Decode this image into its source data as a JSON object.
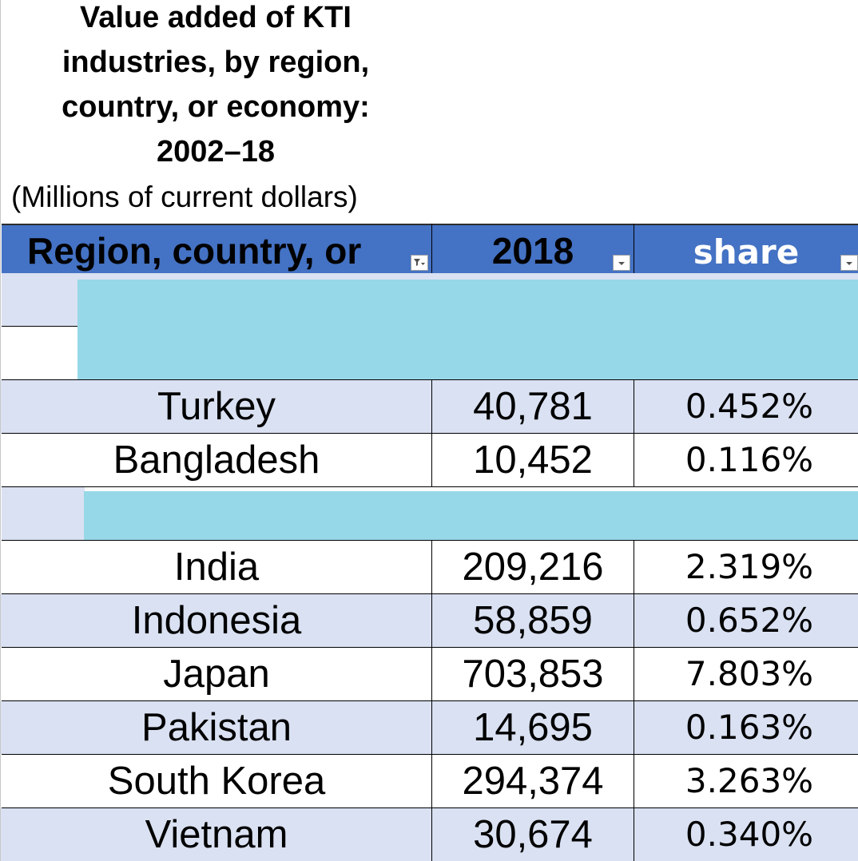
{
  "title": "Value added of KTI industries, by region, country, or economy: 2002–18",
  "title_lines": [
    "Value added of KTI",
    "industries, by region,",
    "country, or economy:",
    "2002–18"
  ],
  "subtitle": "(Millions of current dollars)",
  "table": {
    "headers": [
      {
        "label": "Region, country, or",
        "filter": "filtered"
      },
      {
        "label": "2018",
        "filter": "dropdown"
      },
      {
        "label": "share",
        "filter": "dropdown"
      }
    ],
    "group1_rows": [
      {
        "name": "Turkey",
        "value": "40,781",
        "share": "0.452%"
      },
      {
        "name": "Bangladesh",
        "value": "10,452",
        "share": "0.116%"
      }
    ],
    "group2_rows": [
      {
        "name": "India",
        "value": "209,216",
        "share": "2.319%"
      },
      {
        "name": "Indonesia",
        "value": "58,859",
        "share": "0.652%"
      },
      {
        "name": "Japan",
        "value": "703,853",
        "share": "7.803%"
      },
      {
        "name": "Pakistan",
        "value": "14,695",
        "share": "0.163%"
      },
      {
        "name": "South Korea",
        "value": "294,374",
        "share": "3.263%"
      },
      {
        "name": "Vietnam",
        "value": "30,674",
        "share": "0.340%"
      }
    ]
  },
  "colors": {
    "header_bg": "#4472c4",
    "band_row_bg": "#d9e1f2",
    "highlight_band": "#97d8e8"
  },
  "icons": {
    "filter_active": "funnel-dropdown-icon",
    "filter": "dropdown-arrow-icon"
  }
}
